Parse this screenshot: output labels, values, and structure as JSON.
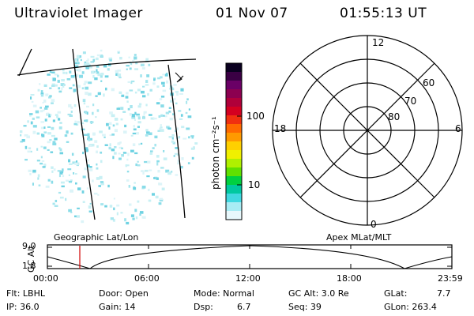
{
  "header": {
    "instrument": "Ultraviolet Imager",
    "date": "01 Nov 07",
    "time": "01:55:13 UT"
  },
  "colorbar": {
    "label": "photon cm⁻²s⁻¹",
    "ticks": [
      "100",
      "10"
    ],
    "colors": [
      "#0a0020",
      "#3a0044",
      "#6a0066",
      "#8c0050",
      "#b0003a",
      "#d40020",
      "#f03010",
      "#ff6a00",
      "#ff9a00",
      "#ffd000",
      "#f0f000",
      "#b0f000",
      "#60e000",
      "#00d040",
      "#00c8a0",
      "#40d8e0",
      "#a8ecf4",
      "#e8f8fc"
    ]
  },
  "polar_plot": {
    "mlt_labels": [
      "12",
      "18",
      "6",
      "0"
    ],
    "lat_labels": [
      "60",
      "70",
      "80"
    ]
  },
  "timeline": {
    "y_axis_label": "GC Alt",
    "y_ticks": [
      "9.0",
      "1.8"
    ],
    "left_title": "Geographic Lat/Lon",
    "right_title": "Apex MLat/MLT",
    "x_ticks": [
      "00:00",
      "06:00",
      "12:00",
      "18:00",
      "23:59"
    ],
    "marker_time": "01:55:13"
  },
  "status": {
    "flt": "Flt: LBHL",
    "ip": "IP: 36.0",
    "door": "Door: Open",
    "gain": "Gain: 14",
    "mode": "Mode: Normal",
    "dsp_label": "Dsp:",
    "dsp_value": "6.7",
    "gc_alt": "GC Alt: 3.0 Re",
    "seq": "Seq: 39",
    "glat_label": "GLat:",
    "glat_value": "7.7",
    "glon": "GLon: 263.4"
  }
}
